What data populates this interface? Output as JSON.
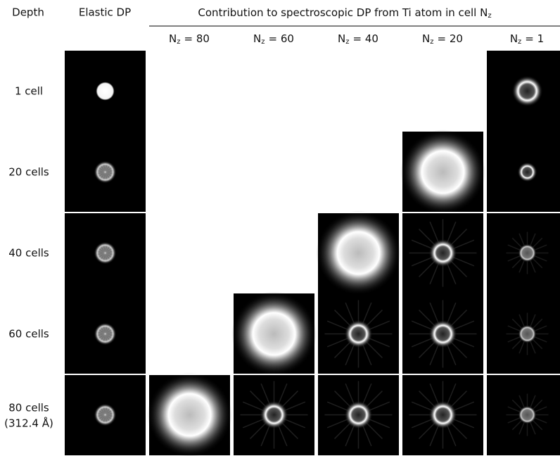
{
  "header": {
    "depth": "Depth",
    "elastic": "Elastic DP",
    "contribution": {
      "text": "Contribution to spectroscopic DP from Ti atom in cell N",
      "subscript": "z"
    }
  },
  "columns": [
    {
      "symbol": "N",
      "subscript": "z",
      "text": "= 80"
    },
    {
      "symbol": "N",
      "subscript": "z",
      "text": "= 60"
    },
    {
      "symbol": "N",
      "subscript": "z",
      "text": "= 40"
    },
    {
      "symbol": "N",
      "subscript": "z",
      "text": "= 20"
    },
    {
      "symbol": "N",
      "subscript": "z",
      "text": "= 1"
    }
  ],
  "rows": [
    {
      "label": "1 cell"
    },
    {
      "label": "20 cells"
    },
    {
      "label": "40 cells"
    },
    {
      "label": "60 cells"
    },
    {
      "label": "80 cells",
      "sublabel": "(312.4 Å)"
    }
  ]
}
